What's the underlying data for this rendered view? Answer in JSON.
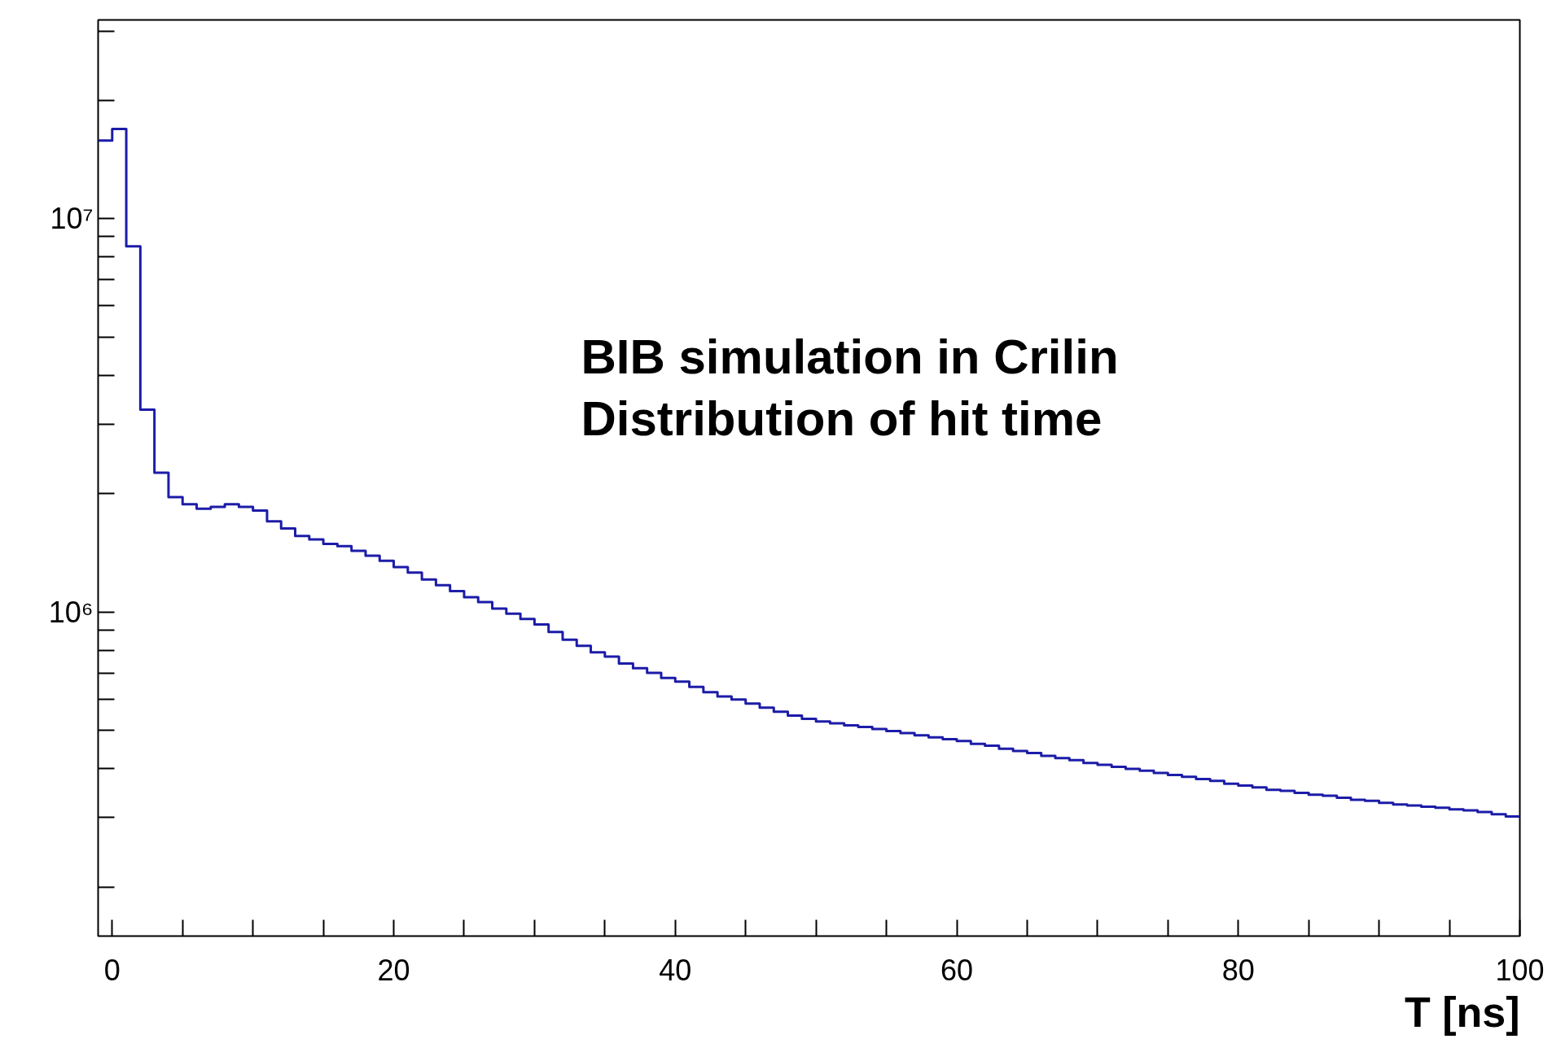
{
  "chart_data": {
    "type": "histogram",
    "annotations": [
      "BIB simulation in Crilin",
      "Distribution of hit time"
    ],
    "xlabel": "T [ns]",
    "bins": [
      -1,
      0,
      1,
      2,
      3,
      4,
      5,
      6,
      7,
      8,
      9,
      10,
      11,
      12,
      13,
      14,
      15,
      16,
      17,
      18,
      19,
      20,
      21,
      22,
      23,
      24,
      25,
      26,
      27,
      28,
      29,
      30,
      31,
      32,
      33,
      34,
      35,
      36,
      37,
      38,
      39,
      40,
      41,
      42,
      43,
      44,
      45,
      46,
      47,
      48,
      49,
      50,
      51,
      52,
      53,
      54,
      55,
      56,
      57,
      58,
      59,
      60,
      61,
      62,
      63,
      64,
      65,
      66,
      67,
      68,
      69,
      70,
      71,
      72,
      73,
      74,
      75,
      76,
      77,
      78,
      79,
      80,
      81,
      82,
      83,
      84,
      85,
      86,
      87,
      88,
      89,
      90,
      91,
      92,
      93,
      94,
      95,
      96,
      97,
      98,
      99,
      100
    ],
    "values": [
      15800000,
      16900000,
      8500000,
      3270000,
      2260000,
      1960000,
      1880000,
      1830000,
      1850000,
      1880000,
      1850000,
      1810000,
      1700000,
      1630000,
      1560000,
      1530000,
      1490000,
      1470000,
      1430000,
      1390000,
      1350000,
      1300000,
      1260000,
      1210000,
      1170000,
      1130000,
      1090000,
      1060000,
      1020000,
      990000,
      960000,
      930000,
      890000,
      850000,
      820000,
      790000,
      770000,
      740000,
      720000,
      700000,
      680000,
      665000,
      645000,
      625000,
      610000,
      599000,
      585000,
      571000,
      558000,
      545000,
      535000,
      527000,
      521000,
      515000,
      510000,
      504000,
      498000,
      492000,
      486000,
      480000,
      475000,
      470000,
      462000,
      457000,
      449000,
      443000,
      438000,
      431000,
      425000,
      420000,
      413000,
      409000,
      404000,
      399000,
      395000,
      390000,
      385000,
      381000,
      376000,
      372000,
      366000,
      362000,
      358000,
      353000,
      351000,
      347000,
      343000,
      341000,
      337000,
      333000,
      331000,
      327000,
      324000,
      322000,
      320000,
      318000,
      315000,
      313000,
      310000,
      306000,
      302000
    ],
    "color": "#1c1ca8",
    "log": "y",
    "grid": false,
    "xlim": [
      -1,
      100
    ],
    "xticks": [
      0,
      20,
      40,
      60,
      80,
      100
    ],
    "ylim": [
      150000,
      32000000
    ],
    "yticks": [
      {
        "value": 1000000,
        "label": "10⁶"
      },
      {
        "value": 10000000,
        "label": "10⁷"
      }
    ]
  }
}
